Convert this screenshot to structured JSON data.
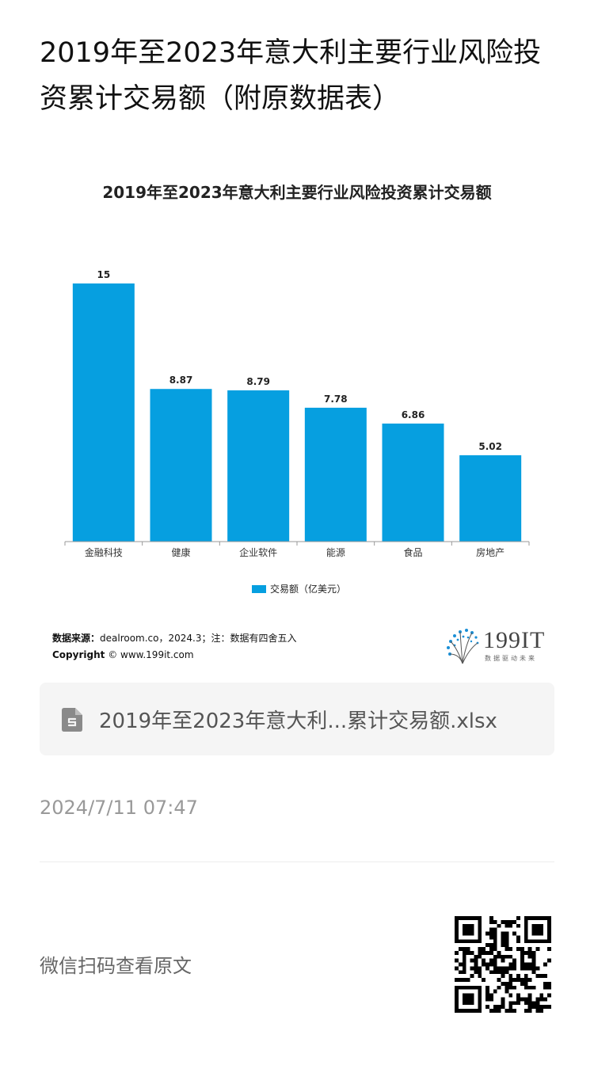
{
  "page": {
    "title": "2019年至2023年意大利主要行业风险投资累计交易额（附原数据表）"
  },
  "chart_data": {
    "type": "bar",
    "title": "2019年至2023年意大利主要行业风险投资累计交易额",
    "categories": [
      "金融科技",
      "健康",
      "企业软件",
      "能源",
      "食品",
      "房地产"
    ],
    "series": [
      {
        "name": "交易额（亿美元）",
        "values": [
          15,
          8.87,
          8.79,
          7.78,
          6.86,
          5.02
        ]
      }
    ],
    "value_labels": [
      "15",
      "8.87",
      "8.79",
      "7.78",
      "6.86",
      "5.02"
    ],
    "ylim": [
      0,
      15
    ],
    "grid": false,
    "legend_position": "bottom",
    "bar_color": "#069fe0"
  },
  "source": {
    "label": "数据来源：",
    "text": "dealroom.co，2024.3；注：数据有四舍五入",
    "copyright_label": "Copyright",
    "copyright_text": "© www.199it.com"
  },
  "brand": {
    "name": "199IT",
    "tagline": "数据驱动未来"
  },
  "attachment": {
    "icon": "spreadsheet-file-icon",
    "filename": "2019年至2023年意大利...累计交易额.xlsx"
  },
  "post": {
    "date": "2024/7/11 07:47",
    "wechat_hint": "微信扫码查看原文"
  }
}
